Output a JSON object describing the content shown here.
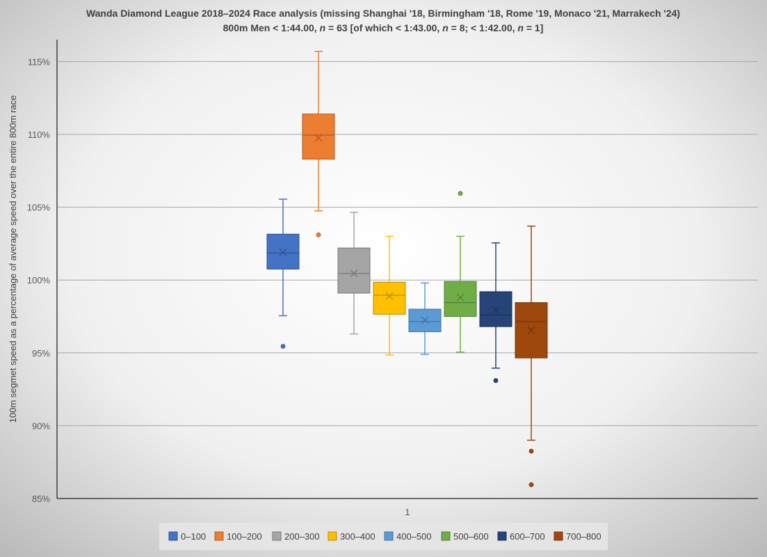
{
  "chart_data": {
    "type": "boxplot",
    "title_parts": [
      {
        "text": "Wanda Diamond League 2018–2024 Race analysis (missing Shanghai '18, Birmingham '18, Rome '19, Monaco '21, Marrakech '24)",
        "italic": false
      }
    ],
    "subtitle_parts": [
      {
        "text": "800m Men < 1:44.00, ",
        "italic": false
      },
      {
        "text": "n",
        "italic": true
      },
      {
        "text": " = 63 [of which < 1:43.00, ",
        "italic": false
      },
      {
        "text": "n",
        "italic": true
      },
      {
        "text": " = 8; < 1:42.00, ",
        "italic": false
      },
      {
        "text": "n",
        "italic": true
      },
      {
        "text": " = 1]",
        "italic": false
      }
    ],
    "ylabel": "100m segmet speed as a percentage of average speed over the entire 800m race",
    "xlabel": "",
    "x_category": "1",
    "ylim": [
      85,
      116.5
    ],
    "yticks": [
      85,
      90,
      95,
      100,
      105,
      110,
      115
    ],
    "ytick_labels": [
      "85%",
      "90%",
      "95%",
      "100%",
      "105%",
      "110%",
      "115%"
    ],
    "grid": true,
    "legend_position": "bottom",
    "series": [
      {
        "name": "0–100",
        "color": "#4472C4",
        "whisker_low": 97.55,
        "q1": 100.75,
        "median": 101.85,
        "q3": 103.15,
        "whisker_high": 105.55,
        "mean": 101.9,
        "outliers": [
          95.45
        ]
      },
      {
        "name": "100–200",
        "color": "#ED7D31",
        "whisker_low": 104.75,
        "q1": 108.3,
        "median": 109.95,
        "q3": 111.4,
        "whisker_high": 115.7,
        "mean": 109.75,
        "outliers": [
          103.1
        ]
      },
      {
        "name": "200–300",
        "color": "#A5A5A5",
        "whisker_low": 96.3,
        "q1": 99.1,
        "median": 100.45,
        "q3": 102.2,
        "whisker_high": 104.65,
        "mean": 100.45,
        "outliers": []
      },
      {
        "name": "300–400",
        "color": "#FFC000",
        "whisker_low": 94.85,
        "q1": 97.65,
        "median": 98.95,
        "q3": 99.85,
        "whisker_high": 103.0,
        "mean": 98.9,
        "outliers": []
      },
      {
        "name": "400–500",
        "color": "#5B9BD5",
        "whisker_low": 94.9,
        "q1": 96.45,
        "median": 97.15,
        "q3": 98.0,
        "whisker_high": 99.8,
        "mean": 97.25,
        "outliers": []
      },
      {
        "name": "500–600",
        "color": "#70AD47",
        "whisker_low": 95.05,
        "q1": 97.5,
        "median": 98.45,
        "q3": 99.9,
        "whisker_high": 103.0,
        "mean": 98.8,
        "outliers": [
          105.95
        ]
      },
      {
        "name": "600–700",
        "color": "#264478",
        "whisker_low": 93.95,
        "q1": 96.8,
        "median": 97.6,
        "q3": 99.2,
        "whisker_high": 102.55,
        "mean": 97.95,
        "outliers": [
          93.1
        ]
      },
      {
        "name": "700–800",
        "color": "#9E480E",
        "whisker_low": 89.0,
        "q1": 94.65,
        "median": 97.15,
        "q3": 98.45,
        "whisker_high": 103.7,
        "mean": 96.55,
        "outliers": [
          88.25,
          85.95
        ]
      }
    ]
  }
}
